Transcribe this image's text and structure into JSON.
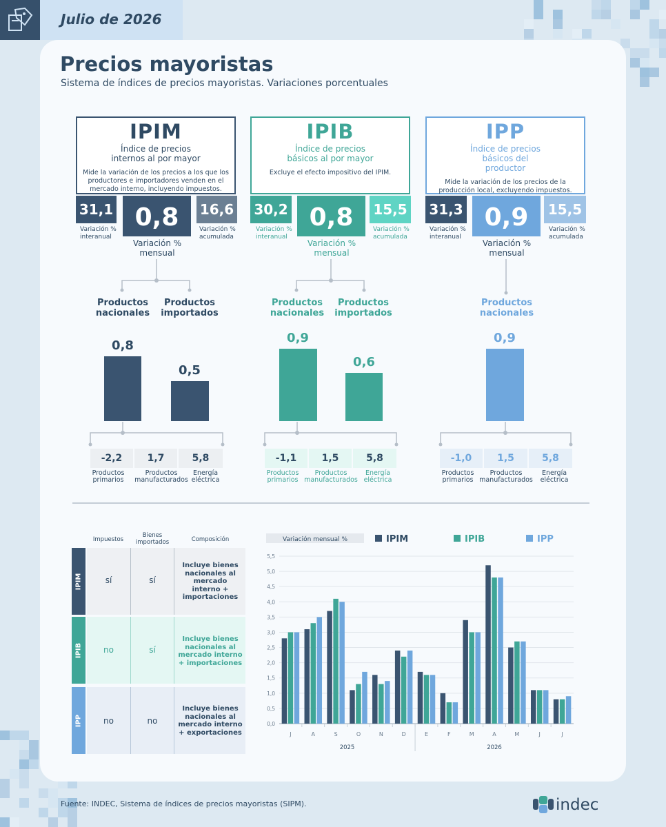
{
  "header": {
    "date": "Julio de 2026"
  },
  "title": "Precios mayoristas",
  "subtitle": "Sistema de índices de precios mayoristas. Variaciones porcentuales",
  "colors": {
    "ipim": "#3a5470",
    "ipib": "#3fa697",
    "ipp": "#6fa7dd",
    "ipim_light": "#6b7f93",
    "ipib_light": "#5fd4c4",
    "ipp_light": "#9fc3e6"
  },
  "indices": [
    {
      "name": "IPIM",
      "full_name": "Índice de precios internos al por mayor",
      "description": "Mide la variación de los precios a los que los productores e importadores venden en el mercado interno, incluyendo impuestos.",
      "interanual": "31,1",
      "interanual_label": "Variación % interanual",
      "mensual": "0,8",
      "mensual_label": "Variación % mensual",
      "acumulada": "16,6",
      "acumulada_label": "Variación % acumulada",
      "products": [
        {
          "label": "Productos nacionales",
          "value": "0,8",
          "num": 0.8
        },
        {
          "label": "Productos importados",
          "value": "0,5",
          "num": 0.5
        }
      ],
      "components": [
        {
          "value": "-2,2",
          "label": "Productos primarios"
        },
        {
          "value": "1,7",
          "label": "Productos manufacturados"
        },
        {
          "value": "5,8",
          "label": "Energía eléctrica"
        }
      ]
    },
    {
      "name": "IPIB",
      "full_name": "Índice de precios básicos al por mayor",
      "description": "Excluye el efecto impositivo del IPIM.",
      "interanual": "30,2",
      "interanual_label": "Variación % interanual",
      "mensual": "0,8",
      "mensual_label": "Variación % mensual",
      "acumulada": "15,5",
      "acumulada_label": "Variación % acumulada",
      "products": [
        {
          "label": "Productos nacionales",
          "value": "0,9",
          "num": 0.9
        },
        {
          "label": "Productos importados",
          "value": "0,6",
          "num": 0.6
        }
      ],
      "components": [
        {
          "value": "-1,1",
          "label": "Productos primarios"
        },
        {
          "value": "1,5",
          "label": "Productos manufacturados"
        },
        {
          "value": "5,8",
          "label": "Energía eléctrica"
        }
      ]
    },
    {
      "name": "IPP",
      "full_name": "Índice de precios básicos del productor",
      "description": "Mide la variación de los precios de la producción local, excluyendo impuestos.",
      "interanual": "31,3",
      "interanual_label": "Variación % interanual",
      "mensual": "0,9",
      "mensual_label": "Variación % mensual",
      "acumulada": "15,5",
      "acumulada_label": "Variación % acumulada",
      "products": [
        {
          "label": "Productos nacionales",
          "value": "0,9",
          "num": 0.9
        }
      ],
      "components": [
        {
          "value": "-1,0",
          "label": "Productos primarios"
        },
        {
          "value": "1,5",
          "label": "Productos manufacturados"
        },
        {
          "value": "5,8",
          "label": "Energía eléctrica"
        }
      ]
    }
  ],
  "table": {
    "headers": [
      "Impuestos",
      "Bienes importados",
      "Composición"
    ],
    "rows": [
      {
        "index": "IPIM",
        "impuestos": "sí",
        "importados": "sí",
        "composicion": "Incluye bienes nacionales al mercado interno + importaciones"
      },
      {
        "index": "IPIB",
        "impuestos": "no",
        "importados": "sí",
        "composicion": "Incluye bienes nacionales al mercado interno + importaciones"
      },
      {
        "index": "IPP",
        "impuestos": "no",
        "importados": "no",
        "composicion": "Incluye bienes nacionales al mercado interno + exportaciones"
      }
    ]
  },
  "chart_data": {
    "type": "bar",
    "title": "Variación mensual %",
    "categories": [
      "J",
      "A",
      "S",
      "O",
      "N",
      "D",
      "E",
      "F",
      "M",
      "A",
      "M",
      "J",
      "J"
    ],
    "year_groups": [
      {
        "label": "2025",
        "months": 6
      },
      {
        "label": "2026",
        "months": 7
      }
    ],
    "series": [
      {
        "name": "IPIM",
        "values": [
          2.8,
          3.1,
          3.7,
          1.1,
          1.6,
          2.4,
          1.7,
          1.0,
          3.4,
          5.2,
          2.5,
          1.1,
          0.8
        ]
      },
      {
        "name": "IPIB",
        "values": [
          3.0,
          3.3,
          4.1,
          1.3,
          1.3,
          2.2,
          1.6,
          0.7,
          3.0,
          4.8,
          2.7,
          1.1,
          0.8
        ]
      },
      {
        "name": "IPP",
        "values": [
          3.0,
          3.5,
          4.0,
          1.7,
          1.4,
          2.4,
          1.6,
          0.7,
          3.0,
          4.8,
          2.7,
          1.1,
          0.9
        ]
      }
    ],
    "ylim": [
      0,
      5.5
    ],
    "yticks": [
      "0,0",
      "0,5",
      "1,0",
      "1,5",
      "2,0",
      "2,5",
      "3,0",
      "3,5",
      "4,0",
      "4,5",
      "5,0",
      "5,5"
    ],
    "legend": "top",
    "grid": true
  },
  "footer": {
    "source": "Fuente: INDEC, Sistema de índices de precios mayoristas (SIPM).",
    "logo": "indec"
  }
}
